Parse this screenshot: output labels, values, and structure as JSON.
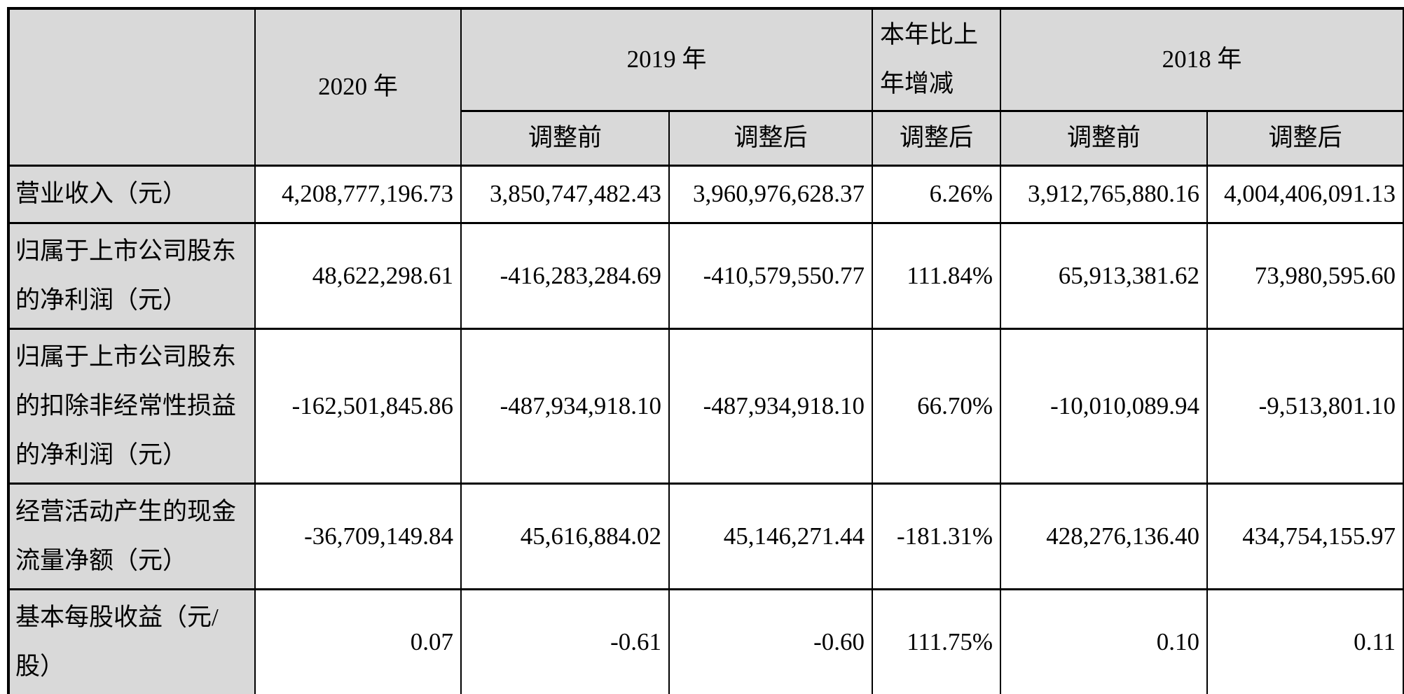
{
  "colors": {
    "header_bg": "#d9d9d9",
    "cell_bg": "#ffffff",
    "border": "#000000"
  },
  "table": {
    "header": {
      "blank": "",
      "col_2020": "2020 年",
      "col_2019": "2019 年",
      "col_change": "本年比上年增减",
      "col_2018": "2018 年",
      "sub_2019_before": "调整前",
      "sub_2019_after": "调整后",
      "sub_change_after": "调整后",
      "sub_2018_before": "调整前",
      "sub_2018_after": "调整后"
    },
    "rows": [
      {
        "label": "营业收入（元）",
        "y2020": "4,208,777,196.73",
        "y2019_before": "3,850,747,482.43",
        "y2019_after": "3,960,976,628.37",
        "change": "6.26%",
        "y2018_before": "3,912,765,880.16",
        "y2018_after": "4,004,406,091.13"
      },
      {
        "label": "归属于上市公司股东的净利润（元）",
        "y2020": "48,622,298.61",
        "y2019_before": "-416,283,284.69",
        "y2019_after": "-410,579,550.77",
        "change": "111.84%",
        "y2018_before": "65,913,381.62",
        "y2018_after": "73,980,595.60"
      },
      {
        "label": "归属于上市公司股东的扣除非经常性损益的净利润（元）",
        "y2020": "-162,501,845.86",
        "y2019_before": "-487,934,918.10",
        "y2019_after": "-487,934,918.10",
        "change": "66.70%",
        "y2018_before": "-10,010,089.94",
        "y2018_after": "-9,513,801.10"
      },
      {
        "label": "经营活动产生的现金流量净额（元）",
        "y2020": "-36,709,149.84",
        "y2019_before": "45,616,884.02",
        "y2019_after": "45,146,271.44",
        "change": "-181.31%",
        "y2018_before": "428,276,136.40",
        "y2018_after": "434,754,155.97"
      },
      {
        "label": "基本每股收益（元/股）",
        "y2020": "0.07",
        "y2019_before": "-0.61",
        "y2019_after": "-0.60",
        "change": "111.75%",
        "y2018_before": "0.10",
        "y2018_after": "0.11"
      }
    ]
  }
}
